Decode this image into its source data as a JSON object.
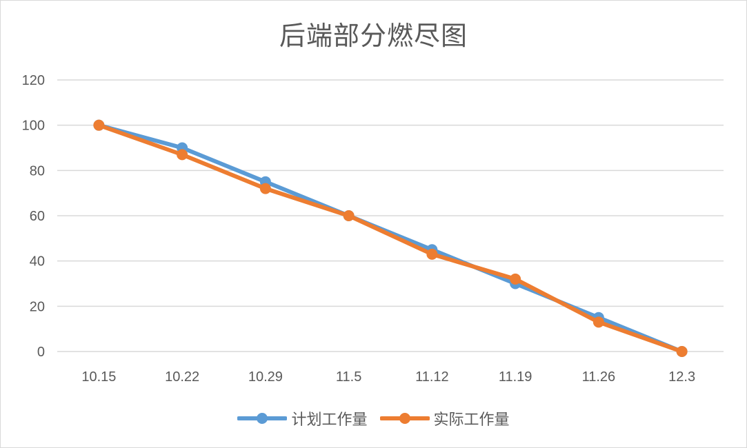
{
  "chart_data": {
    "type": "line",
    "title": "后端部分燃尽图",
    "categories": [
      "10.15",
      "10.22",
      "10.29",
      "11.5",
      "11.12",
      "11.19",
      "11.26",
      "12.3"
    ],
    "ylim": [
      0,
      120
    ],
    "yticks": [
      "0",
      "20",
      "40",
      "60",
      "80",
      "100",
      "120"
    ],
    "grid": true,
    "legend_position": "bottom",
    "series": [
      {
        "name": "计划工作量",
        "color": "#5B9BD5",
        "values": [
          100,
          90,
          75,
          60,
          45,
          30,
          15,
          0
        ]
      },
      {
        "name": "实际工作量",
        "color": "#ED7D31",
        "values": [
          100,
          87,
          72,
          60,
          43,
          32,
          13,
          0
        ]
      }
    ]
  }
}
